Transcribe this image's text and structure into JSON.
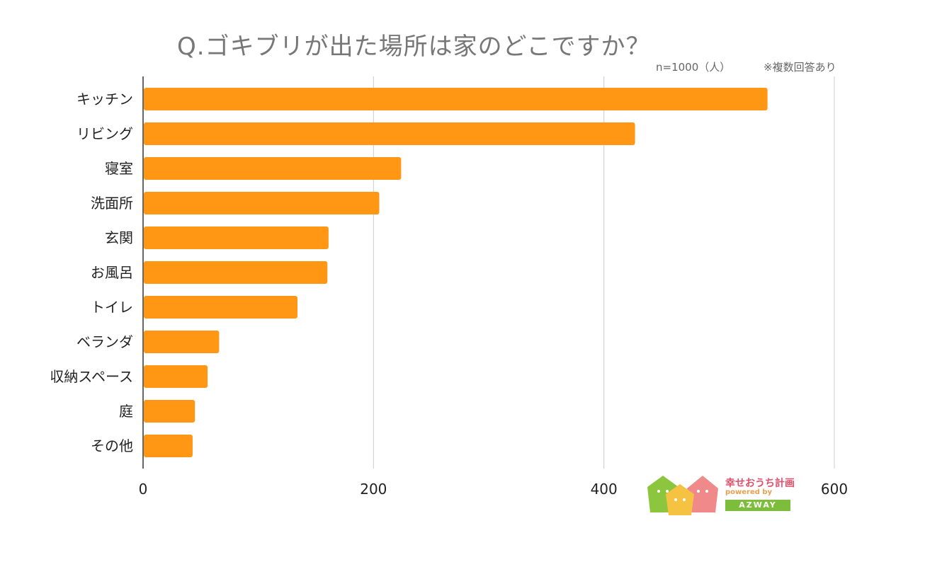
{
  "chart_data": {
    "type": "bar",
    "orientation": "horizontal",
    "title": "Q.ゴキブリが出た場所は家のどこですか？",
    "sample_note": "n=1000（人）",
    "multi_note": "※複数回答あり",
    "categories": [
      "キッチン",
      "リビング",
      "寝室",
      "洗面所",
      "玄関",
      "お風呂",
      "トイレ",
      "ベランダ",
      "収納スペース",
      "庭",
      "その他"
    ],
    "values": [
      542,
      427,
      224,
      205,
      161,
      160,
      134,
      66,
      56,
      45,
      43
    ],
    "xlim": [
      0,
      600
    ],
    "xticks": [
      "0",
      "200",
      "400",
      "600"
    ],
    "bar_color": "#ff9614",
    "grid": true
  },
  "logo": {
    "main": "幸せおうち計画",
    "sub": "powered by",
    "badge": "AZWAY"
  }
}
